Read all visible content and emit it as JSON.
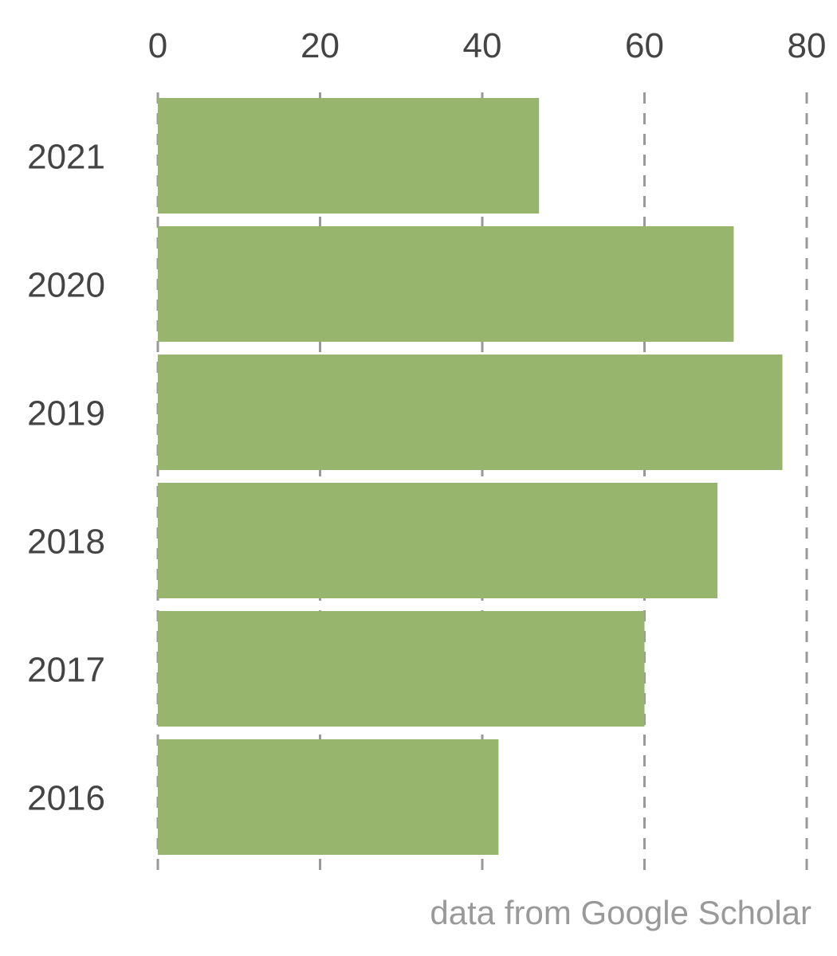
{
  "chart_data": {
    "type": "bar",
    "orientation": "horizontal",
    "categories": [
      "2021",
      "2020",
      "2019",
      "2018",
      "2017",
      "2016"
    ],
    "values": [
      47,
      71,
      77,
      69,
      60,
      42
    ],
    "xlim": [
      0,
      80
    ],
    "xticks": [
      0,
      20,
      40,
      60,
      80
    ],
    "xtick_labels": [
      "0",
      "20",
      "40",
      "60",
      "80"
    ],
    "grid": "vertical dashed",
    "legend": "none",
    "caption": "data from Google Scholar",
    "colors": {
      "bar": "#97b56c",
      "grid": "#999999",
      "text": "#444444",
      "caption": "#999999"
    }
  }
}
